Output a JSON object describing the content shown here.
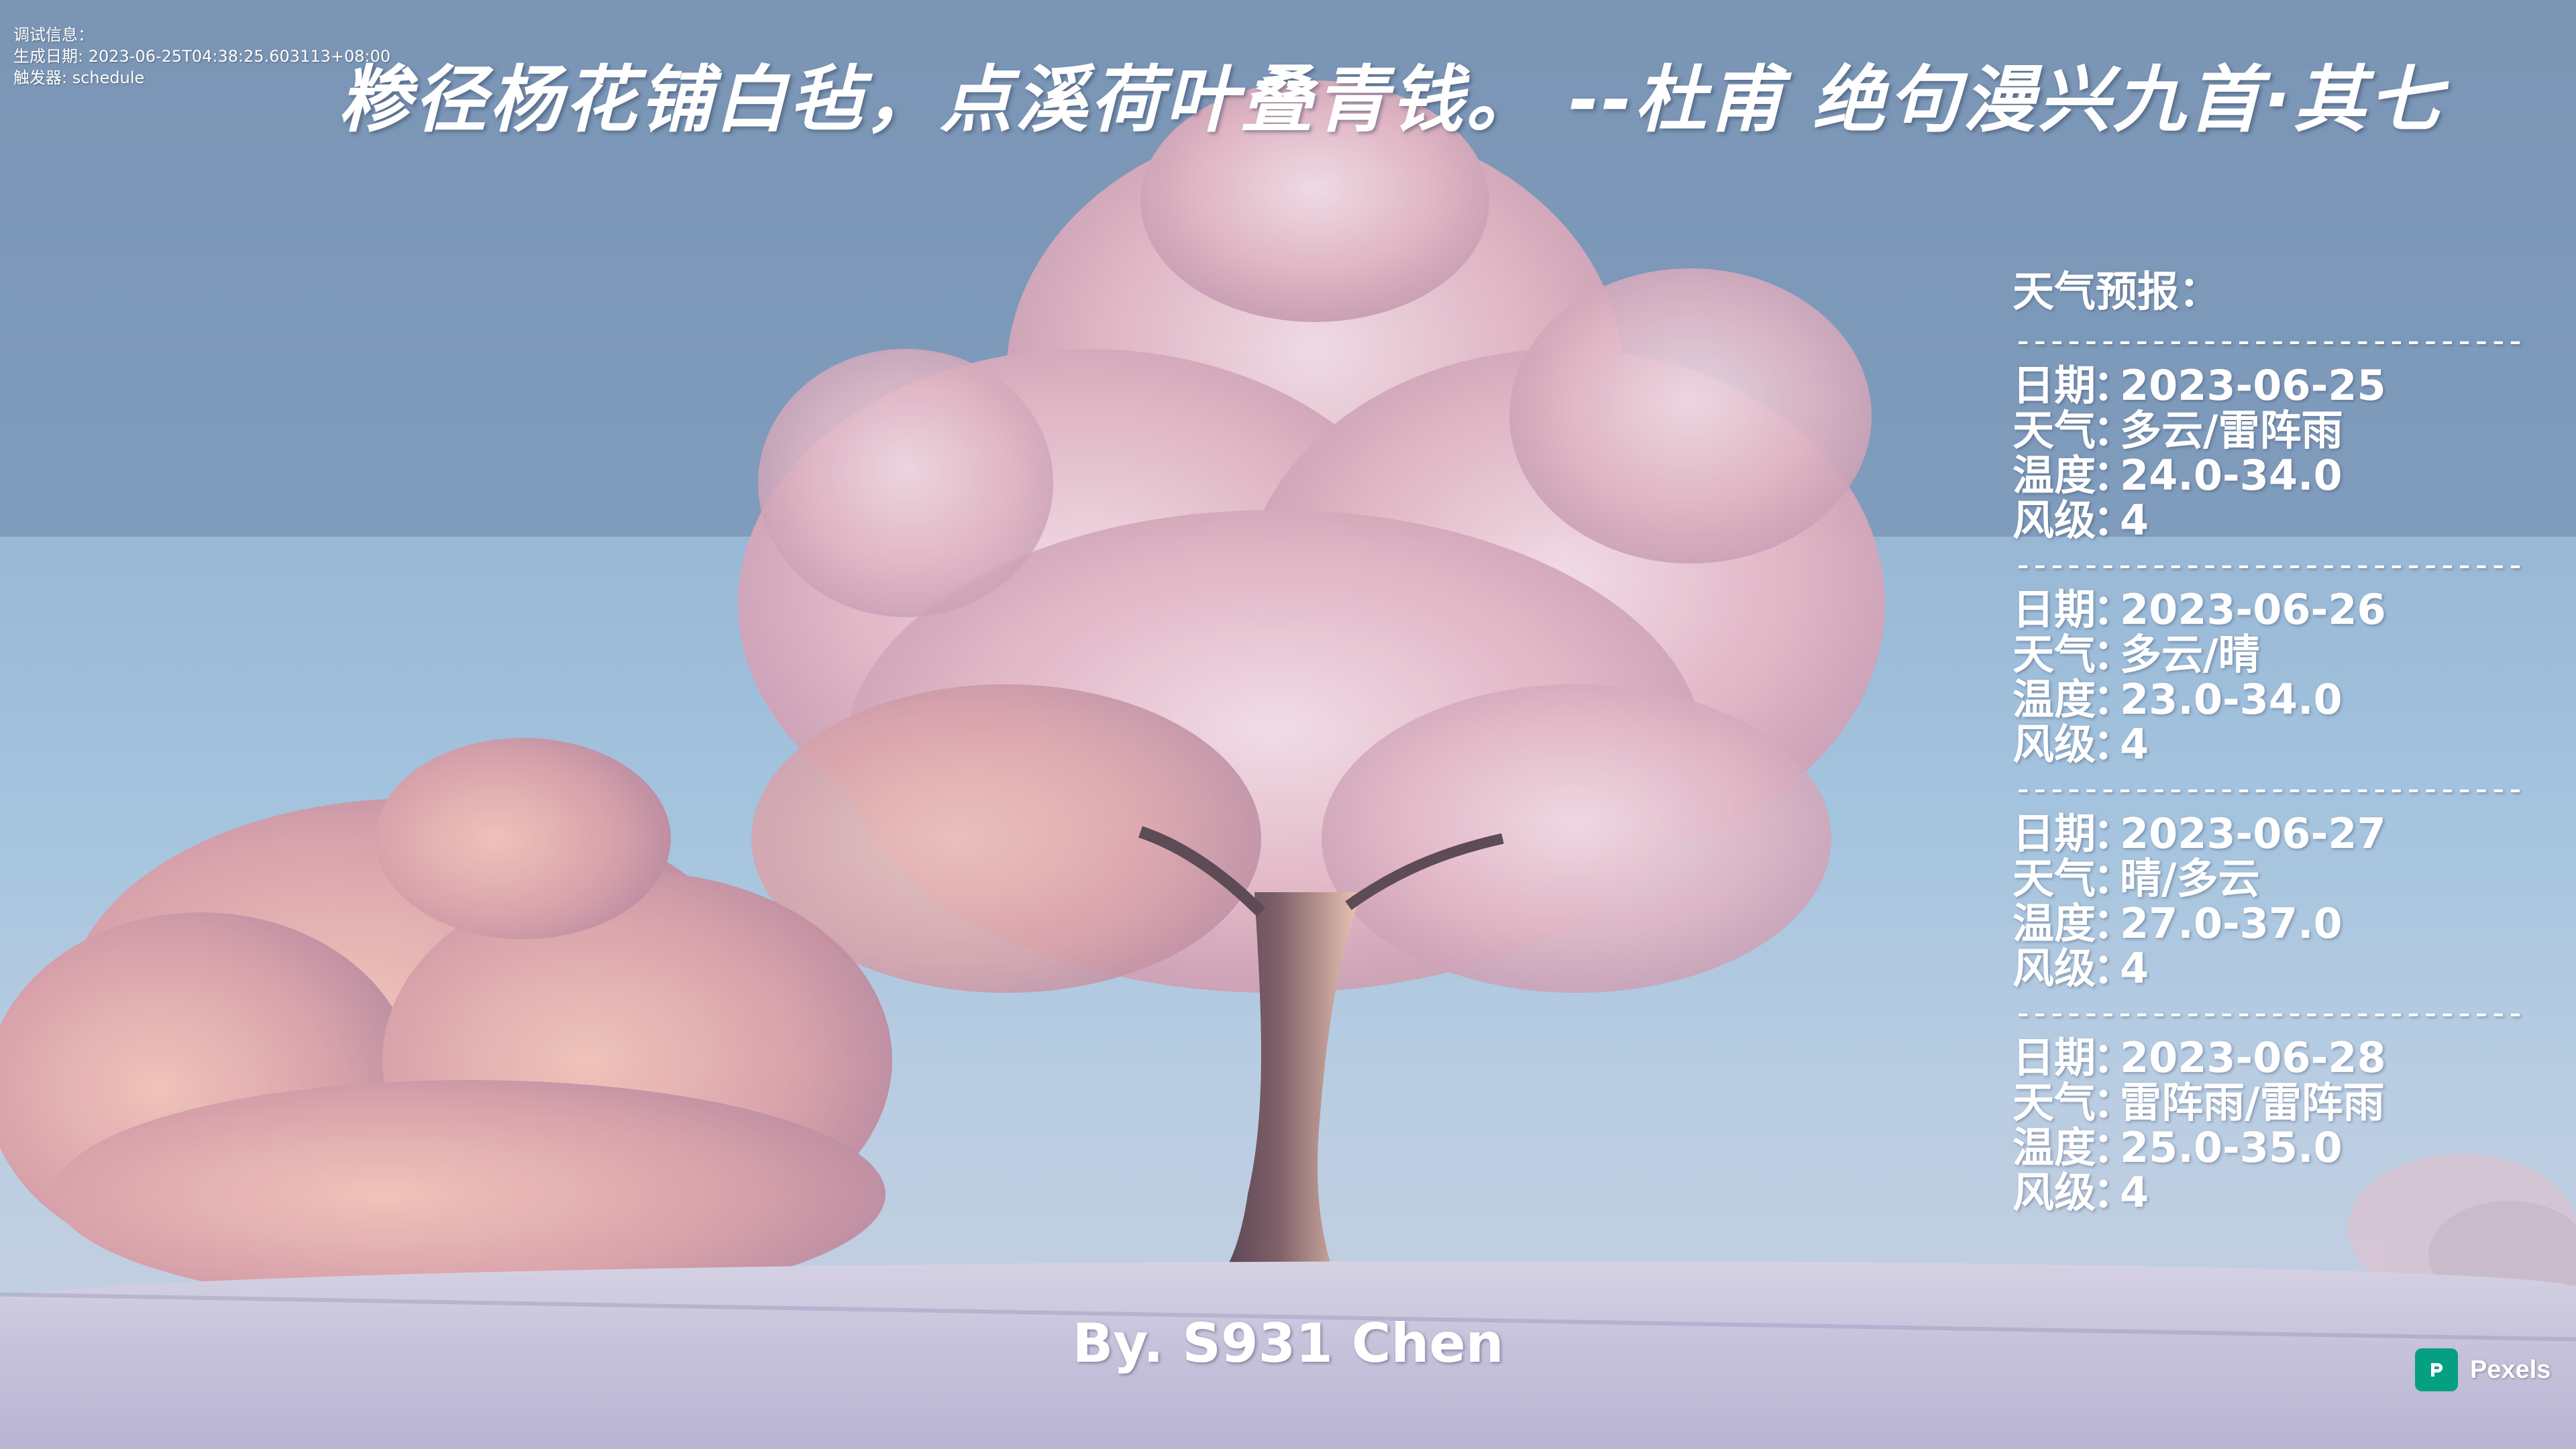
{
  "debug": {
    "title": "调试信息：",
    "generated_line": "生成日期: 2023-06-25T04:38:25.603113+08:00",
    "trigger_line": "触发器: schedule"
  },
  "poem": {
    "text": "糁径杨花铺白毡，点溪荷叶叠青钱。 --杜甫 绝句漫兴九首·其七"
  },
  "weather": {
    "title": "天气预报：",
    "divider": "------------------------------",
    "labels": {
      "date": "日期",
      "weather": "天气",
      "temp": "温度",
      "wind": "风级",
      "sep": "："
    },
    "days": [
      {
        "date": "2023-06-25",
        "weather": "多云/雷阵雨",
        "temp": "24.0-34.0",
        "wind": "4"
      },
      {
        "date": "2023-06-26",
        "weather": "多云/晴",
        "temp": "23.0-34.0",
        "wind": "4"
      },
      {
        "date": "2023-06-27",
        "weather": "晴/多云",
        "temp": "27.0-37.0",
        "wind": "4"
      },
      {
        "date": "2023-06-28",
        "weather": "雷阵雨/雷阵雨",
        "temp": "25.0-35.0",
        "wind": "4"
      }
    ]
  },
  "byline": "By. S931 Chen",
  "watermark": {
    "brand": "Pexels",
    "icon": "pexels-logo-icon",
    "color": "#05a081"
  },
  "colors": {
    "text": "#ffffff",
    "sky_top": "#8ba6c4",
    "sky_bottom": "#c9cfe0",
    "tree_pink": "#e8b9c4",
    "snow": "#d6d2e4"
  }
}
